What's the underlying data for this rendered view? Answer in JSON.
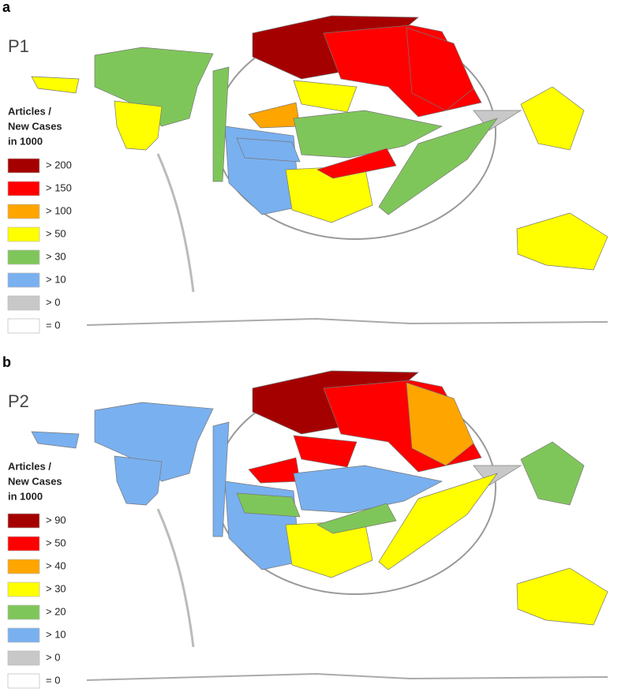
{
  "panels": [
    {
      "label": "a",
      "title": "P1",
      "legend": {
        "title": [
          "Articles /",
          "New Cases",
          "in 1000"
        ],
        "items": [
          {
            "label": "> 200",
            "color": "#a50000"
          },
          {
            "label": "> 150",
            "color": "#ff0000"
          },
          {
            "label": "> 100",
            "color": "#ffa500"
          },
          {
            "label": "> 50",
            "color": "#ffff00"
          },
          {
            "label": "> 30",
            "color": "#7fc65a"
          },
          {
            "label": "> 10",
            "color": "#79b0f0"
          },
          {
            "label": "> 0",
            "color": "#c8c8c8"
          },
          {
            "label": "= 0",
            "color": "#ffffff"
          }
        ]
      }
    },
    {
      "label": "b",
      "title": "P2",
      "legend": {
        "title": [
          "Articles /",
          "New Cases",
          "in 1000"
        ],
        "items": [
          {
            "label": "> 90",
            "color": "#a50000"
          },
          {
            "label": "> 50",
            "color": "#ff0000"
          },
          {
            "label": "> 40",
            "color": "#ffa500"
          },
          {
            "label": "> 30",
            "color": "#ffff00"
          },
          {
            "label": "> 20",
            "color": "#7fc65a"
          },
          {
            "label": "> 10",
            "color": "#79b0f0"
          },
          {
            "label": "> 0",
            "color": "#c8c8c8"
          },
          {
            "label": "= 0",
            "color": "#ffffff"
          }
        ]
      }
    }
  ]
}
